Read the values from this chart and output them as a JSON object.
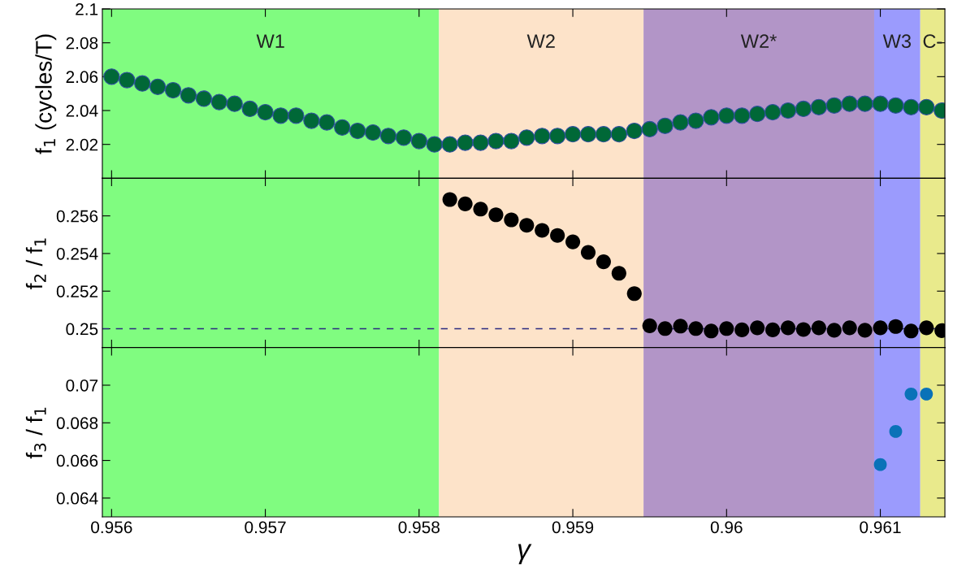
{
  "chart_data": [
    {
      "type": "scatter",
      "ylabel": "f$_{1}$ (cycles/T)",
      "tick_labels": "y",
      "marker": "circle",
      "x": [
        0.956,
        0.9561,
        0.9562,
        0.9563,
        0.9564,
        0.9565,
        0.9566,
        0.9567,
        0.9568,
        0.9569,
        0.957,
        0.9571,
        0.9572,
        0.9573,
        0.9574,
        0.9575,
        0.9576,
        0.9577,
        0.9578,
        0.9579,
        0.958,
        0.9581,
        0.9582,
        0.9583,
        0.9584,
        0.9585,
        0.9586,
        0.9587,
        0.9588,
        0.9589,
        0.959,
        0.9591,
        0.9592,
        0.9593,
        0.9594,
        0.9595,
        0.9596,
        0.9597,
        0.9598,
        0.9599,
        0.96,
        0.9601,
        0.9602,
        0.9603,
        0.9604,
        0.9605,
        0.9606,
        0.9607,
        0.9608,
        0.9609,
        0.961,
        0.9611,
        0.9612,
        0.9613,
        0.9614
      ],
      "series": [
        {
          "color": "#006837",
          "values": [
            2.06,
            2.058,
            2.056,
            2.054,
            2.052,
            2.049,
            2.047,
            2.045,
            2.044,
            2.041,
            2.039,
            2.037,
            2.037,
            2.034,
            2.033,
            2.03,
            2.028,
            2.027,
            2.025,
            2.024,
            2.022,
            2.02,
            2.02,
            2.021,
            2.021,
            2.022,
            2.022,
            2.024,
            2.025,
            2.025,
            2.026,
            2.026,
            2.026,
            2.026,
            2.028,
            2.029,
            2.031,
            2.033,
            2.034,
            2.036,
            2.037,
            2.037,
            2.038,
            2.039,
            2.04,
            2.041,
            2.042,
            2.043,
            2.044,
            2.044,
            2.044,
            2.043,
            2.042,
            2.042,
            2.04
          ]
        }
      ],
      "xlim": [
        0.95594,
        0.96142
      ],
      "xticks": [
        0.956,
        0.957,
        0.958,
        0.959,
        0.96,
        0.961
      ],
      "ylim": [
        2.0,
        2.1
      ],
      "yticks": [
        2.02,
        2.04,
        2.06,
        2.08,
        2.1
      ],
      "bands": [
        {
          "axis": "x",
          "from": 0.95594,
          "to": 0.95813,
          "label": "W1",
          "color": "#80fc80"
        },
        {
          "axis": "x",
          "from": 0.95813,
          "to": 0.95946,
          "label": "W2",
          "color": "#fde3c9"
        },
        {
          "axis": "x",
          "from": 0.95946,
          "to": 0.96096,
          "label": "W2*",
          "color": "#b295c7"
        },
        {
          "axis": "x",
          "from": 0.96096,
          "to": 0.96126,
          "label": "W3",
          "color": "#9b9bfd"
        },
        {
          "axis": "x",
          "from": 0.96126,
          "to": 0.96142,
          "label": "C-",
          "color": "#e9ea8c"
        }
      ]
    },
    {
      "type": "scatter",
      "ylabel": "f$_{2}$ / f$_{1}$",
      "tick_labels": "y",
      "marker": "circle",
      "series": [
        {
          "color": "#000000",
          "x": [
            0.9582,
            0.9583,
            0.9584,
            0.9585,
            0.9586,
            0.9587,
            0.9588,
            0.9589,
            0.959,
            0.9591,
            0.9592,
            0.9593,
            0.9594,
            0.9595,
            0.9596,
            0.9597,
            0.9598,
            0.9599,
            0.96,
            0.9601,
            0.9602,
            0.9603,
            0.9604,
            0.9605,
            0.9606,
            0.9607,
            0.9608,
            0.9609,
            0.961,
            0.9611,
            0.9612,
            0.9613,
            0.9614
          ],
          "values": [
            0.25687,
            0.25664,
            0.25636,
            0.25606,
            0.25579,
            0.2555,
            0.25523,
            0.25496,
            0.25462,
            0.25406,
            0.25356,
            0.25295,
            0.25187,
            0.25016,
            0.25001,
            0.25014,
            0.25001,
            0.24988,
            0.25001,
            0.24994,
            0.25005,
            0.24994,
            0.25005,
            0.24996,
            0.25005,
            0.24992,
            0.25005,
            0.24992,
            0.25005,
            0.25012,
            0.24988,
            0.25005,
            0.2499
          ]
        }
      ],
      "xlim": [
        0.95594,
        0.96142
      ],
      "xticks": [
        0.956,
        0.957,
        0.958,
        0.959,
        0.96,
        0.961
      ],
      "ylim": [
        0.249,
        0.258
      ],
      "yticks": [
        0.25,
        0.252,
        0.254,
        0.256
      ],
      "ref_lines": [
        {
          "axis": "y",
          "value": 0.25,
          "color": "#2b2b80",
          "line_style": "dashed"
        }
      ],
      "bands": [
        {
          "axis": "x",
          "from": 0.95594,
          "to": 0.95813,
          "color": "#80fc80"
        },
        {
          "axis": "x",
          "from": 0.95813,
          "to": 0.95946,
          "color": "#fde3c9"
        },
        {
          "axis": "x",
          "from": 0.95946,
          "to": 0.96096,
          "color": "#b295c7"
        },
        {
          "axis": "x",
          "from": 0.96096,
          "to": 0.96126,
          "color": "#9b9bfd"
        },
        {
          "axis": "x",
          "from": 0.96126,
          "to": 0.96142,
          "color": "#e9ea8c"
        }
      ]
    },
    {
      "type": "scatter",
      "ylabel": "f$_{3}$ / f$_{1}$",
      "xlabel": "γ",
      "marker": "circle",
      "series": [
        {
          "color": "#0a72b8",
          "x": [
            0.961,
            0.9611,
            0.9612,
            0.9613
          ],
          "values": [
            0.06578,
            0.06754,
            0.06953,
            0.06953
          ]
        }
      ],
      "xlim": [
        0.95594,
        0.96142
      ],
      "xticks": [
        0.956,
        0.957,
        0.958,
        0.959,
        0.96,
        0.961
      ],
      "ylim": [
        0.063,
        0.072
      ],
      "yticks": [
        0.064,
        0.066,
        0.068,
        0.07
      ],
      "bands": [
        {
          "axis": "x",
          "from": 0.95594,
          "to": 0.95813,
          "color": "#80fc80"
        },
        {
          "axis": "x",
          "from": 0.95813,
          "to": 0.95946,
          "color": "#fde3c9"
        },
        {
          "axis": "x",
          "from": 0.95946,
          "to": 0.96096,
          "color": "#b295c7"
        },
        {
          "axis": "x",
          "from": 0.96096,
          "to": 0.96126,
          "color": "#9b9bfd"
        },
        {
          "axis": "x",
          "from": 0.96126,
          "to": 0.96142,
          "color": "#e9ea8c"
        }
      ]
    }
  ]
}
